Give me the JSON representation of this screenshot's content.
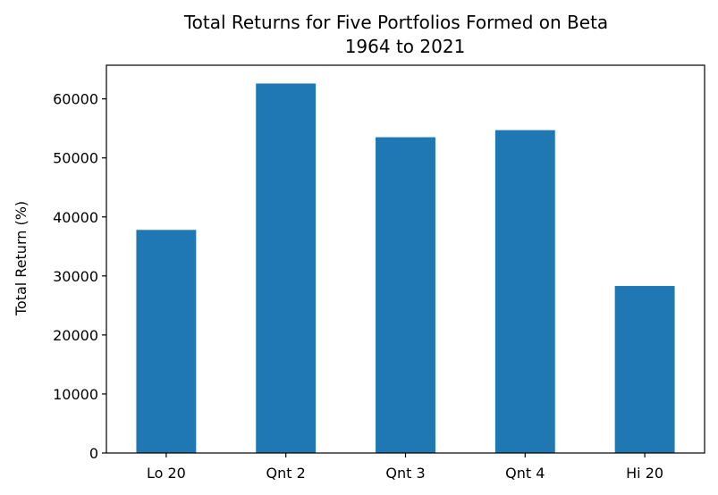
{
  "chart_data": {
    "type": "bar",
    "title": "Total Returns for Five Portfolios Formed on Beta",
    "subtitle": "1964 to 2021",
    "xlabel": "",
    "ylabel": "Total Return (%)",
    "categories": [
      "Lo 20",
      "Qnt 2",
      "Qnt 3",
      "Qnt 4",
      "Hi 20"
    ],
    "values": [
      37800,
      62600,
      53500,
      54700,
      28300
    ],
    "ylim": [
      0,
      65700
    ],
    "yticks": [
      0,
      10000,
      20000,
      30000,
      40000,
      50000,
      60000
    ],
    "ytick_labels": [
      "0",
      "10000",
      "20000",
      "30000",
      "40000",
      "50000",
      "60000"
    ],
    "grid": false,
    "legend": "none",
    "bar_color": "#1f77b4"
  }
}
